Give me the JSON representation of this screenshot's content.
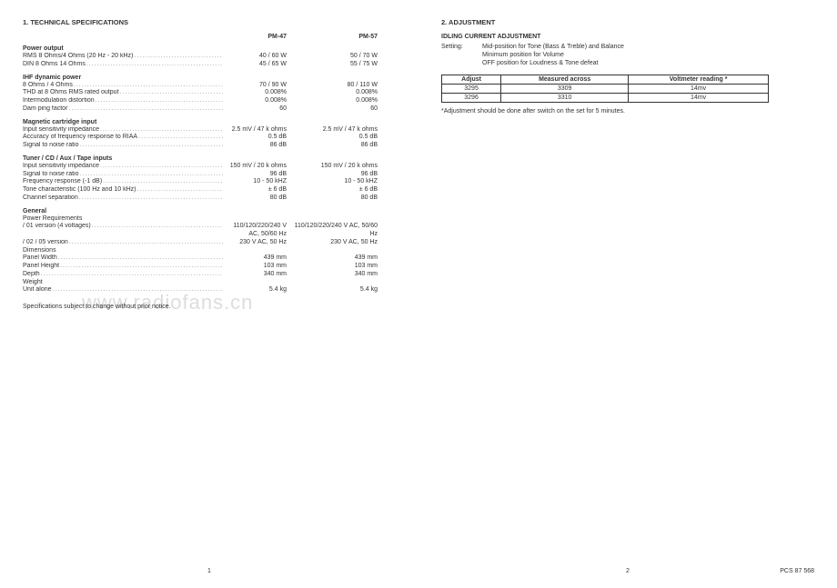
{
  "left": {
    "heading": "1. TECHNICAL SPECIFICATIONS",
    "col1": "PM-47",
    "col2": "PM-57",
    "sections": [
      {
        "title": "Power output",
        "rows": [
          {
            "label": "RMS 8 Ohms/4 Ohms (20 Hz - 20 kHz)",
            "v1": "40 / 60 W",
            "v2": "50 / 70 W"
          },
          {
            "label": "DIN 8 Ohms 14 Ohms",
            "v1": "45 / 65 W",
            "v2": "55 / 75 W"
          }
        ]
      },
      {
        "title": "IHF dynamic power",
        "rows": [
          {
            "label": "8 Ohms / 4 Ohms",
            "v1": "70 / 90 W",
            "v2": "80 / 110 W"
          },
          {
            "label": "THD at 8 Ohms RMS rated output",
            "v1": "0.008%",
            "v2": "0.008%"
          },
          {
            "label": "Intermodulation distortion",
            "v1": "0.008%",
            "v2": "0.008%"
          },
          {
            "label": "Dam ping factor",
            "v1": "60",
            "v2": "60"
          }
        ]
      },
      {
        "title": "Magnetic cartridge input",
        "rows": [
          {
            "label": "Input sensitivity impedance",
            "v1": "2.5 mV / 47 k ohms",
            "v2": "2.5 mV / 47 k ohms"
          },
          {
            "label": "Accuracy of frequency response to RIAA",
            "v1": "0.5 dB",
            "v2": "0.5 dB"
          },
          {
            "label": "Signal to noise ratio",
            "v1": "86 dB",
            "v2": "86 dB"
          }
        ]
      },
      {
        "title": "Tuner / CD / Aux / Tape inputs",
        "rows": [
          {
            "label": "Input sensitivity impedance",
            "v1": "150 mV / 20 k ohms",
            "v2": "150 mV / 20 k ohms"
          },
          {
            "label": "Signal to noise ratio",
            "v1": "96 dB",
            "v2": "96 dB"
          },
          {
            "label": "Frequency response (-1 dB)",
            "v1": "10 - 50 kHZ",
            "v2": "10 - 50 kHZ"
          },
          {
            "label": "Tone characteristic (100 Hz and 10 kHz)",
            "v1": "± 6 dB",
            "v2": "± 6 dB"
          },
          {
            "label": "Channel separation",
            "v1": "80 dB",
            "v2": "80 dB"
          }
        ]
      },
      {
        "title": "General",
        "plain_rows": [
          {
            "label": "Power Requirements"
          }
        ],
        "rows": [
          {
            "label": "   / 01 version (4 voltages)",
            "v1": "110/120/220/240 V AC, 50/60 Hz",
            "v2": "110/120/220/240 V AC, 50/60 Hz"
          },
          {
            "label": "   / 02 / 05 version",
            "v1": "230 V AC, 50 Hz",
            "v2": "230 V AC, 50 Hz"
          }
        ],
        "plain_rows2": [
          {
            "label": "Dimensions"
          }
        ],
        "rows2": [
          {
            "label": "   Panel Width",
            "v1": "439 mm",
            "v2": "439 mm"
          },
          {
            "label": "   Panel Height",
            "v1": "103 mm",
            "v2": "103 mm"
          },
          {
            "label": "   Depth",
            "v1": "340 mm",
            "v2": "340 mm"
          }
        ],
        "plain_rows3": [
          {
            "label": "Weight"
          }
        ],
        "rows3": [
          {
            "label": "   Unit alone",
            "v1": "5.4 kg",
            "v2": "5.4 kg"
          }
        ]
      }
    ],
    "footnote": "Specifications subject to change without prior notice.",
    "page_num": "1",
    "watermark": "www.radiofans.cn"
  },
  "right": {
    "heading": "2. ADJUSTMENT",
    "subheading": "IDLING CURRENT ADJUSTMENT",
    "setting_label": "Setting:",
    "setting_lines": [
      "Mid-position for Tone (Bass & Treble) and Balance",
      "Minimum position for Volume",
      "OFF position for Loudness & Tone defeat"
    ],
    "table": {
      "headers": [
        "Adjust",
        "Measured across",
        "Voltmeter reading *"
      ],
      "rows": [
        [
          "3295",
          "3309",
          "14mv"
        ],
        [
          "3296",
          "3310",
          "14mv"
        ]
      ]
    },
    "table_note": "*Adjustment should be done after switch on the set for 5 minutes.",
    "page_num": "2",
    "footer_right": "PCS 87 568"
  }
}
